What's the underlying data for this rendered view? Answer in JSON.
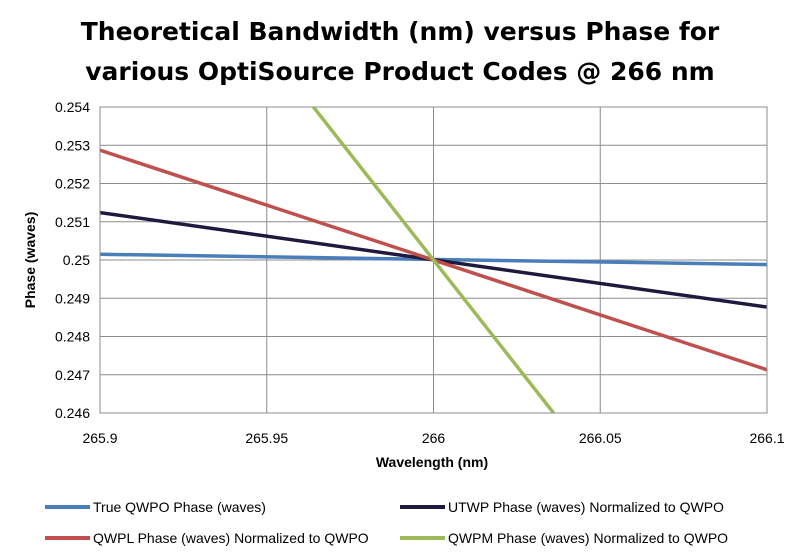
{
  "chart_data": {
    "type": "line",
    "title": [
      "Theoretical Bandwidth (nm) versus Phase for",
      "various OptiSource Product Codes @ 266 nm"
    ],
    "xlabel": "Wavelength (nm)",
    "ylabel": "Phase (waves)",
    "xlim": [
      265.9,
      266.1
    ],
    "ylim": [
      0.246,
      0.254
    ],
    "x_ticks": [
      265.9,
      265.95,
      266,
      266.05,
      266.1
    ],
    "x_tick_labels": [
      "265.9",
      "265.95",
      "266",
      "266.05",
      "266.1"
    ],
    "y_ticks": [
      0.246,
      0.247,
      0.248,
      0.249,
      0.25,
      0.251,
      0.252,
      0.253,
      0.254
    ],
    "y_tick_labels": [
      "0.246",
      "0.247",
      "0.248",
      "0.249",
      "0.25",
      "0.251",
      "0.252",
      "0.253",
      "0.254"
    ],
    "grid": true,
    "legend_position": "bottom",
    "series": [
      {
        "name": "True QWPO Phase (waves)",
        "color": "#4a7ebb",
        "x": [
          265.9,
          266.1
        ],
        "y": [
          0.25015,
          0.24988
        ]
      },
      {
        "name": "UTWP Phase (waves) Normalized to QWPO",
        "color": "#1f1a3d",
        "x": [
          265.9,
          266.1
        ],
        "y": [
          0.25124,
          0.24877
        ]
      },
      {
        "name": "QWPL Phase (waves) Normalized to QWPO",
        "color": "#c0504d",
        "x": [
          265.9,
          266.1
        ],
        "y": [
          0.25287,
          0.24713
        ]
      },
      {
        "name": "QWPM Phase (waves) Normalized to QWPO",
        "color": "#9bbb59",
        "x": [
          265.964,
          266.036
        ],
        "y": [
          0.254,
          0.246
        ]
      }
    ]
  }
}
